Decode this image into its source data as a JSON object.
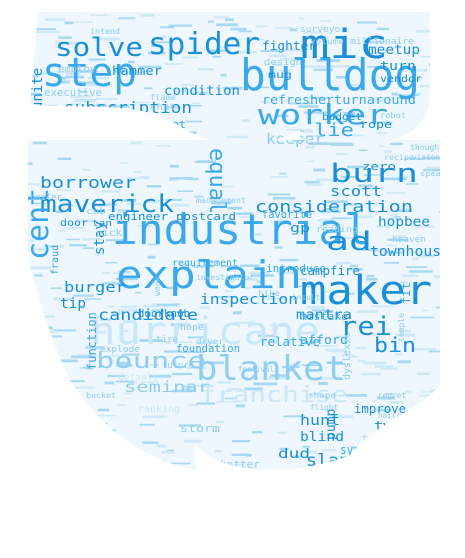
{
  "palette": {
    "background": "#ffffff",
    "dark": "#1a8fd8",
    "mid": "#3aa8ea",
    "light": "#8fcdf2",
    "pale": "#c9e7f8"
  },
  "words": [
    {
      "text": "step",
      "tone": "mid"
    },
    {
      "text": "bulldog",
      "tone": "mid"
    },
    {
      "text": "mic",
      "tone": "dark"
    },
    {
      "text": "spider",
      "tone": "dark"
    },
    {
      "text": "solve",
      "tone": "dark"
    },
    {
      "text": "worker",
      "tone": "mid"
    },
    {
      "text": "equal",
      "tone": "mid"
    },
    {
      "text": "subscription",
      "tone": "dark"
    },
    {
      "text": "condition",
      "tone": "dark"
    },
    {
      "text": "hammer",
      "tone": "dark"
    },
    {
      "text": "fighter",
      "tone": "dark"
    },
    {
      "text": "meetup",
      "tone": "dark"
    },
    {
      "text": "refresher",
      "tone": "mid"
    },
    {
      "text": "turnaround",
      "tone": "mid"
    },
    {
      "text": "turn",
      "tone": "dark"
    },
    {
      "text": "unite",
      "tone": "dark"
    },
    {
      "text": "quadrant",
      "tone": "mid"
    },
    {
      "text": "kicker",
      "tone": "light"
    },
    {
      "text": "lie",
      "tone": "mid"
    },
    {
      "text": "keeper",
      "tone": "light"
    },
    {
      "text": "budget",
      "tone": "dark"
    },
    {
      "text": "rope",
      "tone": "dark"
    },
    {
      "text": "burn",
      "tone": "dark"
    },
    {
      "text": "maverick",
      "tone": "dark"
    },
    {
      "text": "borrower",
      "tone": "dark"
    },
    {
      "text": "industrial",
      "tone": "mid"
    },
    {
      "text": "consideration",
      "tone": "dark"
    },
    {
      "text": "hopbee",
      "tone": "dark"
    },
    {
      "text": "zero",
      "tone": "dark"
    },
    {
      "text": "scott",
      "tone": "dark"
    },
    {
      "text": "cent",
      "tone": "mid"
    },
    {
      "text": "engineer",
      "tone": "dark"
    },
    {
      "text": "postcard",
      "tone": "dark"
    },
    {
      "text": "ad",
      "tone": "dark"
    },
    {
      "text": "explain",
      "tone": "mid"
    },
    {
      "text": "maker",
      "tone": "dark"
    },
    {
      "text": "townhouse",
      "tone": "dark"
    },
    {
      "text": "campfire",
      "tone": "dark"
    },
    {
      "text": "candidate",
      "tone": "dark"
    },
    {
      "text": "burger",
      "tone": "dark"
    },
    {
      "text": "tip",
      "tone": "dark"
    },
    {
      "text": "inspection",
      "tone": "dark"
    },
    {
      "text": "mantra",
      "tone": "dark"
    },
    {
      "text": "hurricane",
      "tone": "pale"
    },
    {
      "text": "rei",
      "tone": "dark"
    },
    {
      "text": "bin",
      "tone": "dark"
    },
    {
      "text": "bounce",
      "tone": "light"
    },
    {
      "text": "blanket",
      "tone": "light"
    },
    {
      "text": "relative",
      "tone": "mid"
    },
    {
      "text": "afford",
      "tone": "mid"
    },
    {
      "text": "franchise",
      "tone": "pale"
    },
    {
      "text": "seminar",
      "tone": "light"
    },
    {
      "text": "improve",
      "tone": "dark"
    },
    {
      "text": "two",
      "tone": "dark"
    },
    {
      "text": "hunt",
      "tone": "dark"
    },
    {
      "text": "blind",
      "tone": "dark"
    },
    {
      "text": "pump",
      "tone": "dark"
    },
    {
      "text": "dud",
      "tone": "dark"
    },
    {
      "text": "slap",
      "tone": "dark"
    },
    {
      "text": "function",
      "tone": "mid"
    },
    {
      "text": "foundation",
      "tone": "mid"
    },
    {
      "text": "doorknob",
      "tone": "dark"
    },
    {
      "text": "stay",
      "tone": "dark"
    },
    {
      "text": "door",
      "tone": "dark"
    },
    {
      "text": "tan",
      "tone": "dark"
    },
    {
      "text": "storm",
      "tone": "light"
    },
    {
      "text": "better",
      "tone": "light"
    },
    {
      "text": "executive",
      "tone": "light"
    },
    {
      "text": "design",
      "tone": "light"
    },
    {
      "text": "mug",
      "tone": "dark"
    },
    {
      "text": "vendor",
      "tone": "dark"
    },
    {
      "text": "surveyor",
      "tone": "light"
    },
    {
      "text": "volume",
      "tone": "light"
    },
    {
      "text": "millionaire",
      "tone": "light"
    },
    {
      "text": "employ",
      "tone": "light"
    },
    {
      "text": "chat",
      "tone": "light"
    },
    {
      "text": "boiler",
      "tone": "light"
    },
    {
      "text": "thought",
      "tone": "light"
    },
    {
      "text": "vision",
      "tone": "light"
    },
    {
      "text": "speak",
      "tone": "light"
    },
    {
      "text": "management",
      "tone": "light"
    },
    {
      "text": "favorite",
      "tone": "mid"
    },
    {
      "text": "reading",
      "tone": "light"
    },
    {
      "text": "heaven",
      "tone": "light"
    },
    {
      "text": "requirement",
      "tone": "mid"
    },
    {
      "text": "investigator",
      "tone": "light"
    },
    {
      "text": "introduce",
      "tone": "mid"
    },
    {
      "text": "mistake",
      "tone": "mid"
    },
    {
      "text": "nick",
      "tone": "light"
    },
    {
      "text": "cub",
      "tone": "light"
    },
    {
      "text": "fraud",
      "tone": "mid"
    },
    {
      "text": "tire",
      "tone": "light"
    },
    {
      "text": "hope",
      "tone": "light"
    },
    {
      "text": "future",
      "tone": "light"
    },
    {
      "text": "default",
      "tone": "pale"
    },
    {
      "text": "ranking",
      "tone": "pale"
    },
    {
      "text": "explode",
      "tone": "light"
    },
    {
      "text": "dryer",
      "tone": "light"
    },
    {
      "text": "shape",
      "tone": "light"
    },
    {
      "text": "regret",
      "tone": "light"
    },
    {
      "text": "haircut",
      "tone": "light"
    },
    {
      "text": "flight",
      "tone": "light"
    },
    {
      "text": "ankle",
      "tone": "light"
    },
    {
      "text": "dyslexic",
      "tone": "light"
    },
    {
      "text": "syndicate",
      "tone": "mid"
    },
    {
      "text": "gp",
      "tone": "dark"
    },
    {
      "text": "fit",
      "tone": "mid"
    },
    {
      "text": "robot",
      "tone": "light"
    },
    {
      "text": "flame",
      "tone": "light"
    },
    {
      "text": "intend",
      "tone": "light"
    },
    {
      "text": "hike",
      "tone": "light"
    },
    {
      "text": "insult",
      "tone": "light"
    },
    {
      "text": "week",
      "tone": "light"
    },
    {
      "text": "festival",
      "tone": "light"
    },
    {
      "text": "frustration",
      "tone": "light"
    },
    {
      "text": "bucket",
      "tone": "light"
    },
    {
      "text": "recipe",
      "tone": "light"
    },
    {
      "text": "temple",
      "tone": "light"
    }
  ]
}
